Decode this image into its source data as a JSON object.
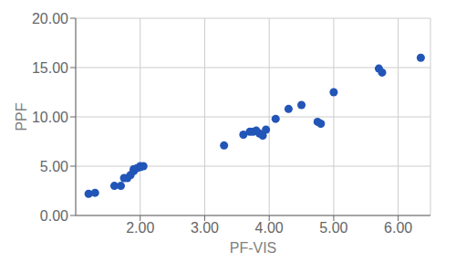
{
  "chart_data": {
    "type": "scatter",
    "x": [
      1.2,
      1.3,
      1.6,
      1.7,
      1.75,
      1.8,
      1.85,
      1.9,
      1.9,
      1.95,
      2.0,
      2.0,
      2.05,
      3.3,
      3.6,
      3.7,
      3.75,
      3.8,
      3.85,
      3.9,
      3.95,
      4.1,
      4.3,
      4.5,
      4.75,
      4.8,
      5.0,
      5.7,
      5.75,
      6.35
    ],
    "values": [
      2.2,
      2.3,
      3.0,
      3.0,
      3.8,
      3.8,
      4.1,
      4.5,
      4.7,
      4.8,
      4.9,
      5.0,
      5.0,
      7.1,
      8.2,
      8.5,
      8.5,
      8.6,
      8.3,
      8.1,
      8.7,
      9.8,
      10.8,
      11.2,
      9.5,
      9.3,
      12.5,
      14.9,
      14.5,
      16.0
    ],
    "color": "#2255b8",
    "xlabel": "PF-VIS",
    "ylabel": "PPF",
    "xlim": [
      1.0,
      6.5
    ],
    "ylim": [
      0.0,
      20.0
    ],
    "xticks": [
      {
        "value": 2.0,
        "label": "2.00"
      },
      {
        "value": 3.0,
        "label": "3.00"
      },
      {
        "value": 4.0,
        "label": "4.00"
      },
      {
        "value": 5.0,
        "label": "5.00"
      },
      {
        "value": 6.0,
        "label": "6.00"
      }
    ],
    "yticks": [
      {
        "value": 0.0,
        "label": "0.00"
      },
      {
        "value": 5.0,
        "label": "5.00"
      },
      {
        "value": 10.0,
        "label": "10.00"
      },
      {
        "value": 15.0,
        "label": "15.00"
      },
      {
        "value": 20.0,
        "label": "20.00"
      }
    ],
    "grid": true
  }
}
